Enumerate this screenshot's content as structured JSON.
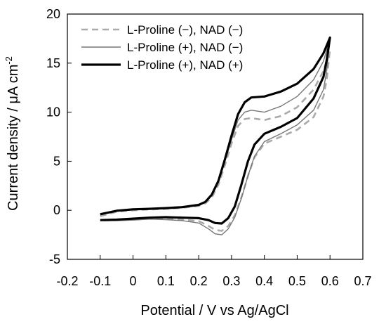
{
  "chart_data": {
    "type": "line",
    "xlabel": "Potential / V vs Ag/AgCl",
    "ylabel": "Current density / μA cm",
    "ylabel_sup": "-2",
    "xlim": [
      -0.2,
      0.7
    ],
    "ylim": [
      -5,
      20
    ],
    "x_ticks": [
      -0.2,
      -0.1,
      0,
      0.1,
      0.2,
      0.3,
      0.4,
      0.5,
      0.6,
      0.7
    ],
    "x_tick_labels": [
      "-0.2",
      "-0.1",
      "0",
      "0.1",
      "0.2",
      "0.3",
      "0.4",
      "0.5",
      "0.6",
      "0.7"
    ],
    "y_ticks": [
      -5,
      0,
      5,
      10,
      15,
      20
    ],
    "y_tick_labels": [
      "-5",
      "0",
      "5",
      "10",
      "15",
      "20"
    ],
    "grid": false,
    "legend_position": "top-left",
    "series": [
      {
        "name": "L-Proline (−), NAD (−)",
        "style": "dashed",
        "color": "#aaaaaa",
        "width": "medium",
        "forward": [
          [
            -0.1,
            -0.6
          ],
          [
            -0.05,
            -0.15
          ],
          [
            0,
            0
          ],
          [
            0.05,
            0.08
          ],
          [
            0.1,
            0.15
          ],
          [
            0.15,
            0.25
          ],
          [
            0.2,
            0.45
          ],
          [
            0.22,
            0.7
          ],
          [
            0.24,
            1.3
          ],
          [
            0.26,
            2.6
          ],
          [
            0.28,
            4.6
          ],
          [
            0.3,
            6.8
          ],
          [
            0.32,
            8.6
          ],
          [
            0.34,
            9.3
          ],
          [
            0.36,
            9.4
          ],
          [
            0.4,
            9.2
          ],
          [
            0.45,
            9.6
          ],
          [
            0.5,
            10.5
          ],
          [
            0.55,
            12.3
          ],
          [
            0.58,
            14.2
          ],
          [
            0.6,
            16.4
          ]
        ],
        "reverse": [
          [
            0.6,
            16.4
          ],
          [
            0.59,
            13.3
          ],
          [
            0.58,
            11.6
          ],
          [
            0.55,
            9.5
          ],
          [
            0.5,
            8.2
          ],
          [
            0.45,
            7.5
          ],
          [
            0.4,
            6.8
          ],
          [
            0.37,
            5.4
          ],
          [
            0.35,
            3.5
          ],
          [
            0.33,
            1.3
          ],
          [
            0.31,
            -0.5
          ],
          [
            0.29,
            -1.6
          ],
          [
            0.27,
            -2.1
          ],
          [
            0.25,
            -2.0
          ],
          [
            0.23,
            -1.6
          ],
          [
            0.2,
            -1.1
          ],
          [
            0.15,
            -0.95
          ],
          [
            0.1,
            -0.85
          ],
          [
            0.05,
            -0.85
          ],
          [
            0,
            -0.95
          ],
          [
            -0.05,
            -1.0
          ],
          [
            -0.1,
            -1.05
          ]
        ]
      },
      {
        "name": "L-Proline (+), NAD (−)",
        "style": "solid",
        "color": "#777777",
        "width": "thin",
        "forward": [
          [
            -0.1,
            -0.4
          ],
          [
            -0.05,
            -0.05
          ],
          [
            0,
            0.05
          ],
          [
            0.05,
            0.1
          ],
          [
            0.1,
            0.18
          ],
          [
            0.15,
            0.28
          ],
          [
            0.2,
            0.5
          ],
          [
            0.22,
            0.8
          ],
          [
            0.24,
            1.5
          ],
          [
            0.26,
            2.9
          ],
          [
            0.28,
            5.0
          ],
          [
            0.3,
            7.2
          ],
          [
            0.32,
            9.2
          ],
          [
            0.34,
            10.0
          ],
          [
            0.36,
            10.2
          ],
          [
            0.4,
            10.0
          ],
          [
            0.45,
            10.6
          ],
          [
            0.5,
            11.6
          ],
          [
            0.55,
            13.3
          ],
          [
            0.58,
            15.2
          ],
          [
            0.6,
            17.5
          ]
        ],
        "reverse": [
          [
            0.6,
            17.5
          ],
          [
            0.59,
            14.2
          ],
          [
            0.58,
            12.3
          ],
          [
            0.55,
            10.2
          ],
          [
            0.5,
            8.7
          ],
          [
            0.45,
            7.8
          ],
          [
            0.4,
            7.0
          ],
          [
            0.37,
            5.5
          ],
          [
            0.35,
            3.5
          ],
          [
            0.33,
            1.2
          ],
          [
            0.31,
            -0.7
          ],
          [
            0.29,
            -1.9
          ],
          [
            0.27,
            -2.5
          ],
          [
            0.25,
            -2.4
          ],
          [
            0.23,
            -1.9
          ],
          [
            0.2,
            -1.3
          ],
          [
            0.15,
            -1.05
          ],
          [
            0.1,
            -0.95
          ],
          [
            0.05,
            -0.9
          ],
          [
            0,
            -1.0
          ],
          [
            -0.05,
            -1.05
          ],
          [
            -0.1,
            -1.05
          ]
        ]
      },
      {
        "name": "L-Proline (+), NAD (+)",
        "style": "solid",
        "color": "#000000",
        "width": "thick",
        "forward": [
          [
            -0.1,
            -0.4
          ],
          [
            -0.05,
            -0.05
          ],
          [
            0,
            0.1
          ],
          [
            0.05,
            0.15
          ],
          [
            0.1,
            0.22
          ],
          [
            0.15,
            0.32
          ],
          [
            0.2,
            0.55
          ],
          [
            0.22,
            0.85
          ],
          [
            0.24,
            1.6
          ],
          [
            0.26,
            3.0
          ],
          [
            0.28,
            5.2
          ],
          [
            0.3,
            7.6
          ],
          [
            0.32,
            9.8
          ],
          [
            0.34,
            11.0
          ],
          [
            0.36,
            11.5
          ],
          [
            0.4,
            11.6
          ],
          [
            0.45,
            12.1
          ],
          [
            0.5,
            12.9
          ],
          [
            0.55,
            14.4
          ],
          [
            0.58,
            16.0
          ],
          [
            0.6,
            17.6
          ]
        ],
        "reverse": [
          [
            0.6,
            17.6
          ],
          [
            0.59,
            15.3
          ],
          [
            0.58,
            13.6
          ],
          [
            0.55,
            11.4
          ],
          [
            0.5,
            9.4
          ],
          [
            0.45,
            8.5
          ],
          [
            0.4,
            7.8
          ],
          [
            0.37,
            6.7
          ],
          [
            0.35,
            5.0
          ],
          [
            0.33,
            2.6
          ],
          [
            0.31,
            0.4
          ],
          [
            0.29,
            -0.8
          ],
          [
            0.27,
            -1.35
          ],
          [
            0.25,
            -1.3
          ],
          [
            0.23,
            -1.0
          ],
          [
            0.2,
            -0.8
          ],
          [
            0.15,
            -0.75
          ],
          [
            0.1,
            -0.7
          ],
          [
            0.05,
            -0.75
          ],
          [
            0,
            -0.85
          ],
          [
            -0.05,
            -0.95
          ],
          [
            -0.1,
            -1.0
          ]
        ]
      }
    ]
  }
}
